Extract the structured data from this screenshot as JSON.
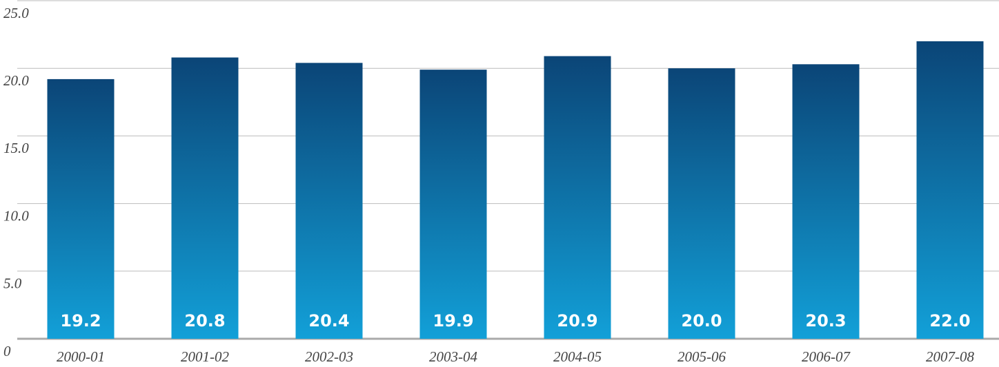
{
  "chart_data": {
    "type": "bar",
    "categories": [
      "2000-01",
      "2001-02",
      "2002-03",
      "2003-04",
      "2004-05",
      "2005-06",
      "2006-07",
      "2007-08"
    ],
    "values": [
      19.2,
      20.8,
      20.4,
      19.9,
      20.9,
      20.0,
      20.3,
      22.0
    ],
    "value_labels": [
      "19.2",
      "20.8",
      "20.4",
      "19.9",
      "20.9",
      "20.0",
      "20.3",
      "22.0"
    ],
    "color": [
      "#0b4577",
      "#12a0d8"
    ],
    "ylim": [
      0,
      25
    ],
    "yticks": [
      0,
      {
        "value": 5,
        "label": "5.0"
      },
      {
        "value": 10,
        "label": "10.0"
      },
      {
        "value": 15,
        "label": "15.0"
      },
      {
        "value": 20,
        "label": "20.0"
      },
      {
        "value": 25,
        "label": "25.0"
      }
    ],
    "grid": true
  }
}
